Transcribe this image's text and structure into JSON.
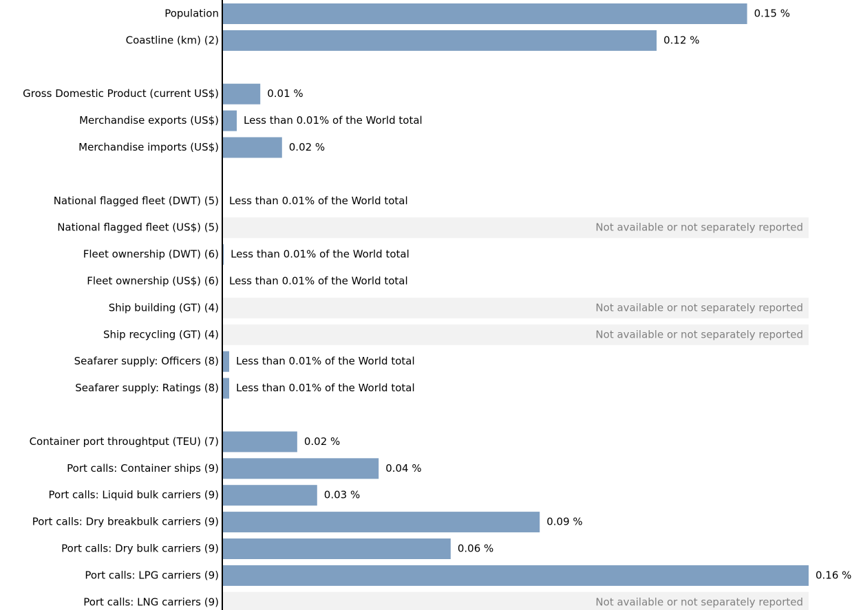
{
  "chart_data": {
    "type": "bar",
    "orientation": "horizontal",
    "color": "#7f9fc1",
    "categories": [
      "Population",
      "Coastline (km) (2)",
      null,
      "Gross Domestic Product (current US$)",
      "Merchandise exports (US$)",
      "Merchandise imports (US$)",
      null,
      "National flagged fleet (DWT) (5)",
      "National flagged fleet (US$) (5)",
      "Fleet ownership (DWT) (6)",
      "Fleet ownership (US$) (6)",
      "Ship building (GT) (4)",
      "Ship recycling (GT) (4)",
      "Seafarer supply: Officers (8)",
      "Seafarer supply: Ratings (8)",
      null,
      "Container port throughtput (TEU) (7)",
      "Port calls: Container ships (9)",
      "Port calls: Liquid bulk carriers (9)",
      "Port calls: Dry breakbulk carriers (9)",
      "Port calls: Dry bulk carriers (9)",
      "Port calls: LPG carriers (9)",
      "Port calls: LNG carriers (9)"
    ],
    "values": [
      0.145,
      0.12,
      null,
      0.0105,
      0.004,
      0.0165,
      null,
      0,
      null,
      0.0004,
      0,
      null,
      null,
      0.0019,
      0.0019,
      null,
      0.0207,
      0.0432,
      0.0262,
      0.0877,
      0.0631,
      0.162,
      null
    ],
    "value_labels": [
      "0.15 %",
      "0.12 %",
      null,
      "0.01 %",
      "Less than 0.01% of the World total",
      "0.02 %",
      null,
      "Less than 0.01% of the World total",
      "Not available or not separately reported",
      "Less than 0.01% of the World total",
      "Less than 0.01% of the World total",
      "Not available or not separately reported",
      "Not available or not separately reported",
      "Less than 0.01% of the World total",
      "Less than 0.01% of the World total",
      null,
      "0.02 %",
      "0.04 %",
      "0.03 %",
      "0.09 %",
      "0.06 %",
      "0.16 %",
      "Not available or not separately reported"
    ],
    "xlim": [
      0,
      0.162
    ]
  }
}
